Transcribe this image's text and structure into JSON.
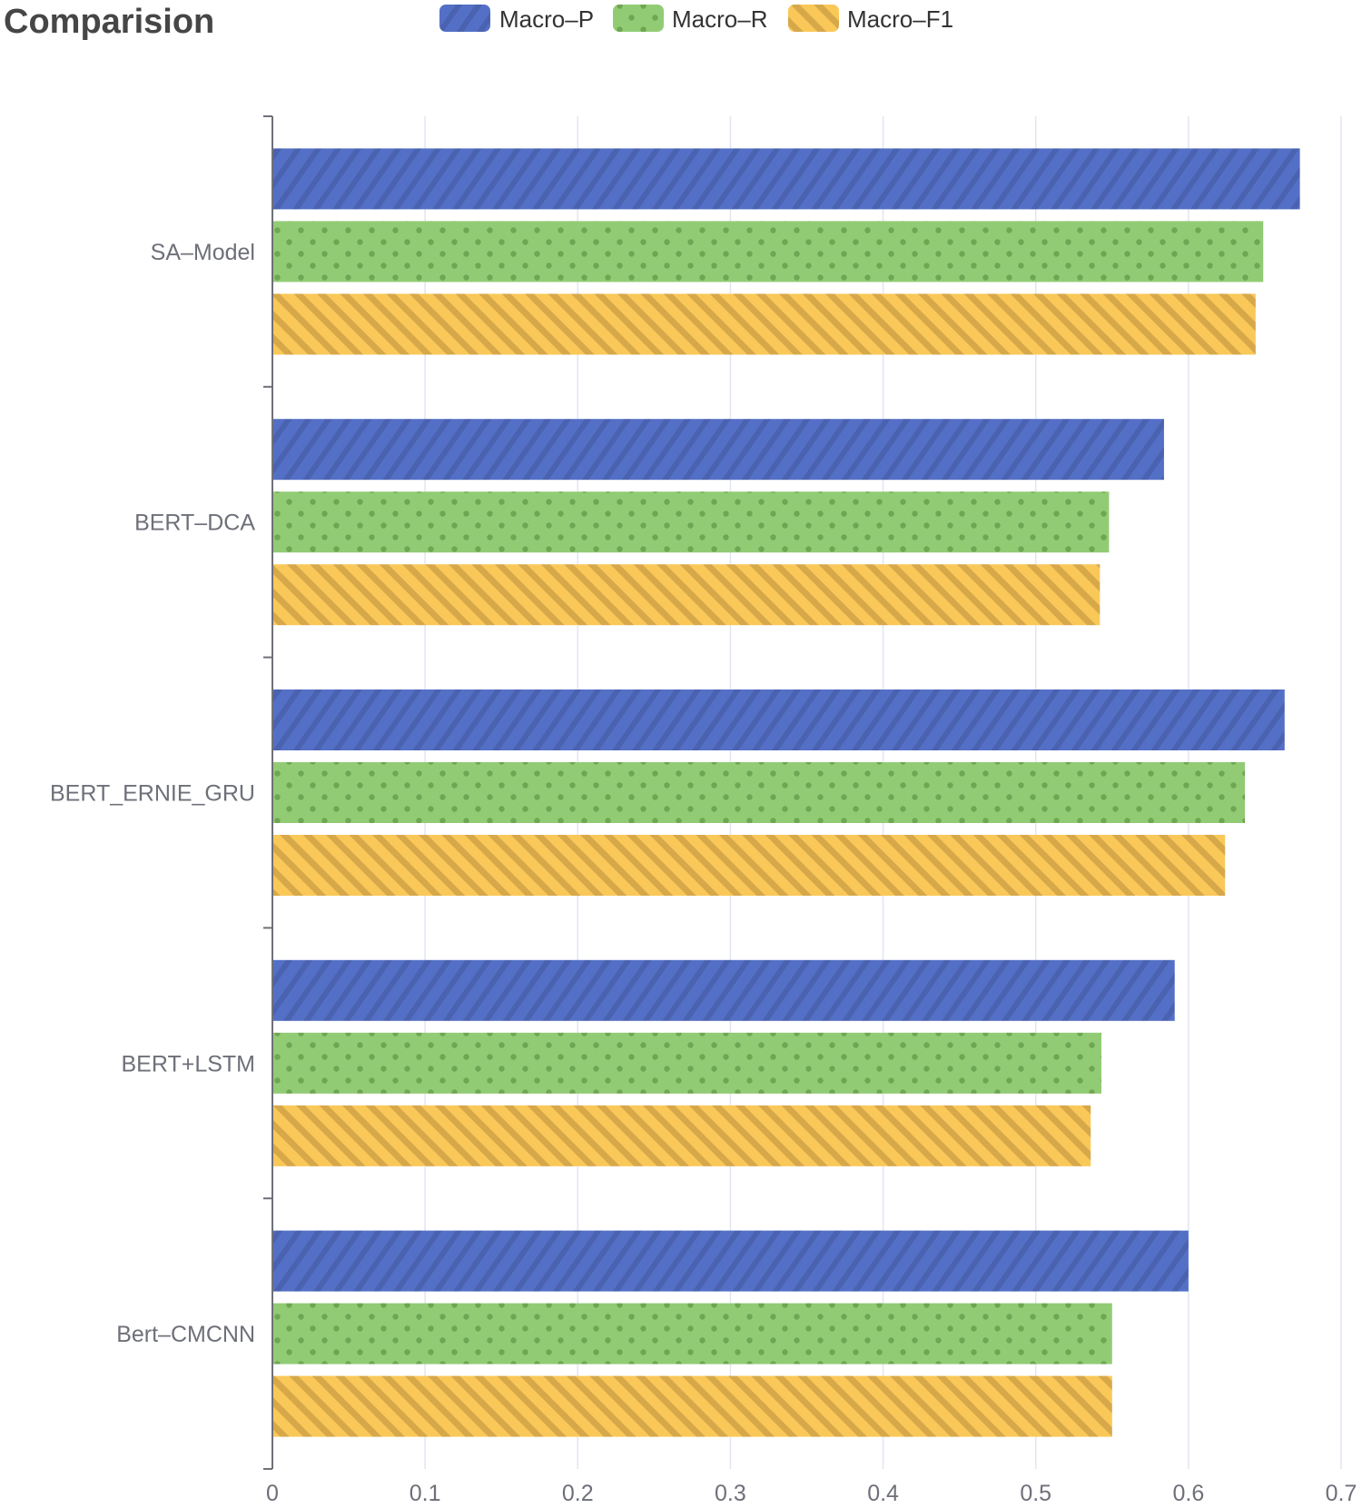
{
  "chart_data": {
    "type": "bar",
    "orientation": "horizontal",
    "title": "Comparision",
    "categories": [
      "SA–Model",
      "BERT–DCA",
      "BERT_ERNIE_GRU",
      "BERT+LSTM",
      "Bert–CMCNN"
    ],
    "series": [
      {
        "name": "Macro–P",
        "color": "#5470c6",
        "pattern": "diagonal-stripes",
        "values": [
          0.673,
          0.584,
          0.663,
          0.591,
          0.6
        ]
      },
      {
        "name": "Macro–R",
        "color": "#91cc75",
        "pattern": "dots",
        "values": [
          0.649,
          0.548,
          0.637,
          0.543,
          0.55
        ]
      },
      {
        "name": "Macro–F1",
        "color": "#fac858",
        "pattern": "diagonal-stripes",
        "values": [
          0.644,
          0.542,
          0.624,
          0.536,
          0.55
        ]
      }
    ],
    "xlim": [
      0,
      0.7
    ],
    "xticks": [
      "0",
      "0.1",
      "0.2",
      "0.3",
      "0.4",
      "0.5",
      "0.6",
      "0.7"
    ],
    "grid": true,
    "legend_position": "top-center"
  }
}
